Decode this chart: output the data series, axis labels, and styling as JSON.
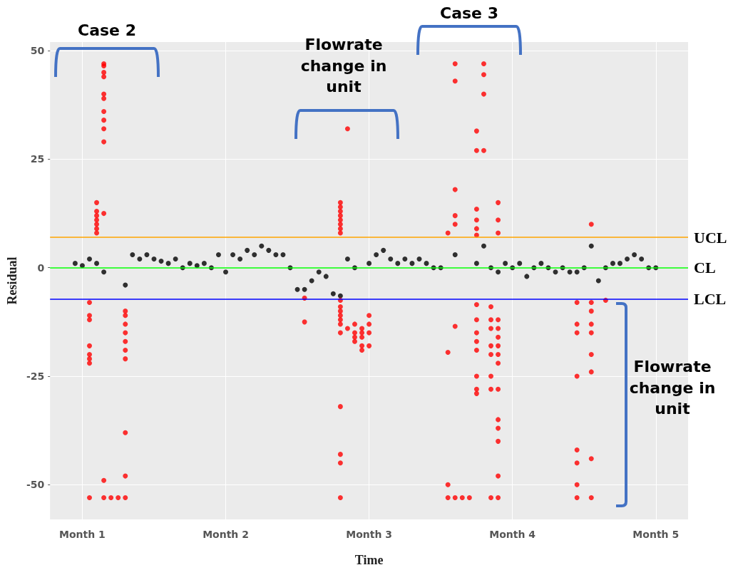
{
  "chart_data": {
    "type": "scatter",
    "xlabel": "Time",
    "ylabel": "Residual",
    "categories": [
      null,
      null,
      null,
      null,
      "Month 1",
      null,
      null,
      null,
      null,
      null,
      null,
      null,
      null,
      null,
      null,
      null,
      null,
      null,
      null,
      null,
      null,
      null,
      null,
      null,
      "Month 2",
      null,
      null,
      null,
      null,
      null,
      null,
      null,
      null,
      null,
      null,
      null,
      null,
      null,
      null,
      null,
      null,
      null,
      null,
      null,
      "Month 3",
      null,
      null,
      null,
      null,
      null,
      null,
      null,
      null,
      null,
      null,
      null,
      null,
      null,
      null,
      null,
      null,
      null,
      null,
      null,
      "Month 4",
      null,
      null,
      null,
      null,
      null,
      null,
      null,
      null,
      null,
      null,
      null,
      null,
      null,
      null,
      null,
      null,
      null,
      null,
      null,
      "Month 5",
      null,
      null,
      null,
      null
    ],
    "ylim": [
      -58,
      52
    ],
    "yticks": [
      -50,
      -25,
      0,
      25,
      50
    ],
    "grid": true,
    "marker": "circle",
    "series": [
      {
        "color": "#000000",
        "values": [
          null,
          null,
          null,
          1,
          0.5,
          2,
          1,
          -1,
          null,
          null,
          -4,
          3,
          2,
          3,
          2,
          1.5,
          1,
          2,
          0,
          1,
          0.5,
          1,
          0,
          3,
          -1,
          3,
          2,
          4,
          3,
          5,
          4,
          3,
          3,
          0,
          -5,
          -5,
          -3,
          -1,
          -2,
          -6,
          -6.5,
          2,
          0,
          null,
          1,
          3,
          4,
          2,
          1,
          2,
          1,
          2,
          1,
          0,
          0,
          null,
          3,
          null,
          null,
          1,
          5,
          0,
          -1,
          1,
          0,
          1,
          -2,
          0,
          1,
          0,
          -1,
          0,
          -1,
          -1,
          0,
          5,
          -3,
          0,
          1,
          1,
          2,
          3,
          2,
          0,
          0,
          null,
          null,
          null,
          null
        ]
      },
      {
        "color": "#ff0000",
        "values": [
          null,
          null,
          null,
          null,
          null,
          -53,
          15,
          47,
          -53,
          -53,
          -53,
          null,
          null,
          null,
          null,
          null,
          null,
          null,
          null,
          null,
          null,
          null,
          null,
          null,
          null,
          null,
          null,
          null,
          null,
          null,
          null,
          null,
          null,
          null,
          null,
          -7,
          null,
          null,
          null,
          null,
          15,
          32,
          -16,
          -19,
          -18,
          null,
          null,
          null,
          null,
          null,
          null,
          null,
          null,
          null,
          null,
          8,
          47,
          -53,
          -53,
          31.5,
          47,
          -9,
          15,
          null,
          null,
          null,
          null,
          null,
          null,
          null,
          null,
          null,
          null,
          -8,
          null,
          10,
          null,
          -7.5,
          null,
          null,
          null,
          null,
          null,
          null,
          null,
          null,
          null,
          null,
          null
        ]
      },
      {
        "color": "#ff0000",
        "values": [
          null,
          null,
          null,
          null,
          null,
          -22,
          13,
          46.5,
          null,
          null,
          -48,
          null,
          null,
          null,
          null,
          null,
          null,
          null,
          null,
          null,
          null,
          null,
          null,
          null,
          null,
          null,
          null,
          null,
          null,
          null,
          null,
          null,
          null,
          null,
          null,
          -12.5,
          null,
          null,
          null,
          null,
          14,
          -14,
          -13,
          -15,
          -13,
          null,
          null,
          null,
          null,
          null,
          null,
          null,
          null,
          null,
          null,
          -19.5,
          43,
          null,
          null,
          27,
          44.5,
          -12,
          11,
          null,
          null,
          null,
          null,
          null,
          null,
          null,
          null,
          null,
          null,
          -13,
          null,
          -8,
          null,
          null,
          null,
          null,
          null,
          null,
          null,
          null,
          null,
          null,
          null,
          null,
          null
        ]
      },
      {
        "color": "#ff0000",
        "values": [
          null,
          null,
          null,
          null,
          null,
          -21,
          12,
          45,
          null,
          null,
          -38,
          null,
          null,
          null,
          null,
          null,
          null,
          null,
          null,
          null,
          null,
          null,
          null,
          null,
          null,
          null,
          null,
          null,
          null,
          null,
          null,
          null,
          null,
          null,
          null,
          null,
          null,
          null,
          null,
          null,
          13,
          null,
          -17,
          -18,
          -15,
          null,
          null,
          null,
          null,
          null,
          null,
          null,
          null,
          null,
          null,
          -50,
          18,
          null,
          null,
          13.5,
          40,
          -14,
          8,
          null,
          null,
          null,
          null,
          null,
          null,
          null,
          null,
          null,
          null,
          -15,
          null,
          -10,
          null,
          null,
          null,
          null,
          null,
          null,
          null,
          null,
          null,
          null,
          null,
          null,
          null
        ]
      },
      {
        "color": "#ff0000",
        "values": [
          null,
          null,
          null,
          null,
          null,
          -20,
          11,
          44,
          null,
          null,
          -10,
          null,
          null,
          null,
          null,
          null,
          null,
          null,
          null,
          null,
          null,
          null,
          null,
          null,
          null,
          null,
          null,
          null,
          null,
          null,
          null,
          null,
          null,
          null,
          null,
          null,
          null,
          null,
          null,
          null,
          12,
          null,
          -15,
          -14,
          -11,
          null,
          null,
          null,
          null,
          null,
          null,
          null,
          null,
          null,
          null,
          -53,
          12,
          null,
          null,
          11,
          27,
          -18,
          -12,
          null,
          null,
          null,
          null,
          null,
          null,
          null,
          null,
          null,
          null,
          -25,
          null,
          -13,
          null,
          null,
          null,
          null,
          null,
          null,
          null,
          null,
          null,
          null,
          null,
          null,
          null
        ]
      },
      {
        "color": "#ff0000",
        "values": [
          null,
          null,
          null,
          null,
          null,
          -18,
          10,
          40,
          null,
          null,
          -11,
          null,
          null,
          null,
          null,
          null,
          null,
          null,
          null,
          null,
          null,
          null,
          null,
          null,
          null,
          null,
          null,
          null,
          null,
          null,
          null,
          null,
          null,
          null,
          null,
          null,
          null,
          null,
          null,
          null,
          11,
          null,
          null,
          -16,
          null,
          null,
          null,
          null,
          null,
          null,
          null,
          null,
          null,
          null,
          null,
          null,
          10,
          null,
          null,
          9,
          null,
          -20,
          -14,
          null,
          null,
          null,
          null,
          null,
          null,
          null,
          null,
          null,
          null,
          -42,
          null,
          -15,
          null,
          null,
          null,
          null,
          null,
          null,
          null,
          null,
          null,
          null,
          null,
          null,
          null
        ]
      },
      {
        "color": "#ff0000",
        "values": [
          null,
          null,
          null,
          null,
          null,
          -12,
          9,
          39,
          null,
          null,
          -13,
          null,
          null,
          null,
          null,
          null,
          null,
          null,
          null,
          null,
          null,
          null,
          null,
          null,
          null,
          null,
          null,
          null,
          null,
          null,
          null,
          null,
          null,
          null,
          null,
          null,
          null,
          null,
          null,
          null,
          10,
          null,
          null,
          null,
          null,
          null,
          null,
          null,
          null,
          null,
          null,
          null,
          null,
          null,
          null,
          null,
          -13.5,
          null,
          null,
          7.5,
          null,
          -25,
          -16,
          null,
          null,
          null,
          null,
          null,
          null,
          null,
          null,
          null,
          null,
          -45,
          null,
          -20,
          null,
          null,
          null,
          null,
          null,
          null,
          null,
          null,
          null,
          null,
          null,
          null,
          null
        ]
      },
      {
        "color": "#ff0000",
        "values": [
          null,
          null,
          null,
          null,
          null,
          -11,
          8,
          36,
          null,
          null,
          -15,
          null,
          null,
          null,
          null,
          null,
          null,
          null,
          null,
          null,
          null,
          null,
          null,
          null,
          null,
          null,
          null,
          null,
          null,
          null,
          null,
          null,
          null,
          null,
          null,
          null,
          null,
          null,
          null,
          null,
          9,
          null,
          null,
          null,
          null,
          null,
          null,
          null,
          null,
          null,
          null,
          null,
          null,
          null,
          null,
          null,
          -53,
          null,
          null,
          -8.5,
          null,
          -28,
          -18,
          null,
          null,
          null,
          null,
          null,
          null,
          null,
          null,
          null,
          null,
          -50,
          null,
          -24,
          null,
          null,
          null,
          null,
          null,
          null,
          null,
          null,
          null,
          null,
          null,
          null,
          null
        ]
      },
      {
        "color": "#ff0000",
        "values": [
          null,
          null,
          null,
          null,
          null,
          -8,
          null,
          34,
          null,
          null,
          -17,
          null,
          null,
          null,
          null,
          null,
          null,
          null,
          null,
          null,
          null,
          null,
          null,
          null,
          null,
          null,
          null,
          null,
          null,
          null,
          null,
          null,
          null,
          null,
          null,
          null,
          null,
          null,
          null,
          null,
          8,
          null,
          null,
          null,
          null,
          null,
          null,
          null,
          null,
          null,
          null,
          null,
          null,
          null,
          null,
          null,
          null,
          null,
          null,
          -12,
          null,
          -53,
          -20,
          null,
          null,
          null,
          null,
          null,
          null,
          null,
          null,
          null,
          null,
          -53,
          null,
          -44,
          null,
          null,
          null,
          null,
          null,
          null,
          null,
          null,
          null,
          null,
          null,
          null,
          null
        ]
      },
      {
        "color": "#ff0000",
        "values": [
          null,
          null,
          null,
          null,
          null,
          null,
          null,
          32,
          null,
          null,
          -19,
          null,
          null,
          null,
          null,
          null,
          null,
          null,
          null,
          null,
          null,
          null,
          null,
          null,
          null,
          null,
          null,
          null,
          null,
          null,
          null,
          null,
          null,
          null,
          null,
          null,
          null,
          null,
          null,
          null,
          -7.5,
          null,
          null,
          null,
          null,
          null,
          null,
          null,
          null,
          null,
          null,
          null,
          null,
          null,
          null,
          null,
          null,
          null,
          null,
          -15,
          null,
          null,
          -22,
          null,
          null,
          null,
          null,
          null,
          null,
          null,
          null,
          null,
          null,
          null,
          null,
          -53,
          null,
          null,
          null,
          null,
          null,
          null,
          null,
          null,
          null,
          null,
          null,
          null,
          null
        ]
      },
      {
        "color": "#ff0000",
        "values": [
          null,
          null,
          null,
          null,
          null,
          null,
          null,
          29,
          null,
          null,
          -21,
          null,
          null,
          null,
          null,
          null,
          null,
          null,
          null,
          null,
          null,
          null,
          null,
          null,
          null,
          null,
          null,
          null,
          null,
          null,
          null,
          null,
          null,
          null,
          null,
          null,
          null,
          null,
          null,
          null,
          null,
          null,
          null,
          null,
          null,
          null,
          null,
          null,
          null,
          null,
          null,
          null,
          null,
          null,
          null,
          null,
          null,
          null,
          null,
          -17,
          null,
          null,
          -28,
          null,
          null,
          null,
          null,
          null,
          null,
          null,
          null,
          null,
          null,
          null,
          null,
          null,
          null,
          null,
          null,
          null,
          null,
          null,
          null,
          null,
          null,
          null,
          null,
          null,
          null
        ]
      },
      {
        "color": "#ff0000",
        "values": [
          null,
          null,
          null,
          null,
          null,
          null,
          null,
          12.5,
          null,
          null,
          null,
          null,
          null,
          null,
          null,
          null,
          null,
          null,
          null,
          null,
          null,
          null,
          null,
          null,
          null,
          null,
          null,
          null,
          null,
          null,
          null,
          null,
          null,
          null,
          null,
          null,
          null,
          null,
          null,
          null,
          -9,
          null,
          null,
          null,
          null,
          null,
          null,
          null,
          null,
          null,
          null,
          null,
          null,
          null,
          null,
          null,
          null,
          null,
          null,
          -19,
          null,
          null,
          -35,
          null,
          null,
          null,
          null,
          null,
          null,
          null,
          null,
          null,
          null,
          null,
          null,
          null,
          null,
          null,
          null,
          null,
          null,
          null,
          null,
          null,
          null,
          null,
          null,
          null,
          null
        ]
      },
      {
        "color": "#ff0000",
        "values": [
          null,
          null,
          null,
          null,
          null,
          null,
          null,
          -49,
          null,
          null,
          null,
          null,
          null,
          null,
          null,
          null,
          null,
          null,
          null,
          null,
          null,
          null,
          null,
          null,
          null,
          null,
          null,
          null,
          null,
          null,
          null,
          null,
          null,
          null,
          null,
          null,
          null,
          null,
          null,
          null,
          -10,
          null,
          null,
          null,
          null,
          null,
          null,
          null,
          null,
          null,
          null,
          null,
          null,
          null,
          null,
          null,
          null,
          null,
          null,
          -25,
          null,
          null,
          -37,
          null,
          null,
          null,
          null,
          null,
          null,
          null,
          null,
          null,
          null,
          null,
          null,
          null,
          null,
          null,
          null,
          null,
          null,
          null,
          null,
          null,
          null,
          null,
          null,
          null,
          null
        ]
      },
      {
        "color": "#ff0000",
        "values": [
          null,
          null,
          null,
          null,
          null,
          null,
          null,
          -53,
          null,
          null,
          null,
          null,
          null,
          null,
          null,
          null,
          null,
          null,
          null,
          null,
          null,
          null,
          null,
          null,
          null,
          null,
          null,
          null,
          null,
          null,
          null,
          null,
          null,
          null,
          null,
          null,
          null,
          null,
          null,
          null,
          -11,
          null,
          null,
          null,
          null,
          null,
          null,
          null,
          null,
          null,
          null,
          null,
          null,
          null,
          null,
          null,
          null,
          null,
          null,
          -28,
          null,
          null,
          -40,
          null,
          null,
          null,
          null,
          null,
          null,
          null,
          null,
          null,
          null,
          null,
          null,
          null,
          null,
          null,
          null,
          null,
          null,
          null,
          null,
          null,
          null,
          null,
          null,
          null,
          null
        ]
      },
      {
        "color": "#ff0000",
        "values": [
          null,
          null,
          null,
          null,
          null,
          null,
          null,
          null,
          null,
          null,
          null,
          null,
          null,
          null,
          null,
          null,
          null,
          null,
          null,
          null,
          null,
          null,
          null,
          null,
          null,
          null,
          null,
          null,
          null,
          null,
          null,
          null,
          null,
          null,
          null,
          null,
          null,
          null,
          null,
          null,
          -12,
          null,
          null,
          null,
          null,
          null,
          null,
          null,
          null,
          null,
          null,
          null,
          null,
          null,
          null,
          null,
          null,
          null,
          null,
          -29,
          null,
          null,
          -48,
          null,
          null,
          null,
          null,
          null,
          null,
          null,
          null,
          null,
          null,
          null,
          null,
          null,
          null,
          null,
          null,
          null,
          null,
          null,
          null,
          null,
          null,
          null,
          null,
          null,
          null
        ]
      },
      {
        "color": "#ff0000",
        "values": [
          null,
          null,
          null,
          null,
          null,
          null,
          null,
          null,
          null,
          null,
          null,
          null,
          null,
          null,
          null,
          null,
          null,
          null,
          null,
          null,
          null,
          null,
          null,
          null,
          null,
          null,
          null,
          null,
          null,
          null,
          null,
          null,
          null,
          null,
          null,
          null,
          null,
          null,
          null,
          null,
          -13,
          null,
          null,
          null,
          null,
          null,
          null,
          null,
          null,
          null,
          null,
          null,
          null,
          null,
          null,
          null,
          null,
          null,
          null,
          null,
          null,
          null,
          -53,
          null,
          null,
          null,
          null,
          null,
          null,
          null,
          null,
          null,
          null,
          null,
          null,
          null,
          null,
          null,
          null,
          null,
          null,
          null,
          null,
          null,
          null,
          null,
          null,
          null,
          null
        ]
      },
      {
        "color": "#ff0000",
        "values": [
          null,
          null,
          null,
          null,
          null,
          null,
          null,
          null,
          null,
          null,
          null,
          null,
          null,
          null,
          null,
          null,
          null,
          null,
          null,
          null,
          null,
          null,
          null,
          null,
          null,
          null,
          null,
          null,
          null,
          null,
          null,
          null,
          null,
          null,
          null,
          null,
          null,
          null,
          null,
          null,
          -15,
          null,
          null,
          null,
          null,
          null,
          null,
          null,
          null,
          null,
          null,
          null,
          null,
          null,
          null,
          null,
          null,
          null,
          null,
          null,
          null,
          null,
          null,
          null,
          null,
          null,
          null,
          null,
          null,
          null,
          null,
          null,
          null,
          null,
          null,
          null,
          null,
          null,
          null,
          null,
          null,
          null,
          null,
          null,
          null,
          null,
          null,
          null,
          null
        ]
      },
      {
        "color": "#ff0000",
        "values": [
          null,
          null,
          null,
          null,
          null,
          null,
          null,
          null,
          null,
          null,
          null,
          null,
          null,
          null,
          null,
          null,
          null,
          null,
          null,
          null,
          null,
          null,
          null,
          null,
          null,
          null,
          null,
          null,
          null,
          null,
          null,
          null,
          null,
          null,
          null,
          null,
          null,
          null,
          null,
          null,
          -32,
          null,
          null,
          null,
          null,
          null,
          null,
          null,
          null,
          null,
          null,
          null,
          null,
          null,
          null,
          null,
          null,
          null,
          null,
          null,
          null,
          null,
          null,
          null,
          null,
          null,
          null,
          null,
          null,
          null,
          null,
          null,
          null,
          null,
          null,
          null,
          null,
          null,
          null,
          null,
          null,
          null,
          null,
          null,
          null,
          null,
          null,
          null,
          null
        ]
      },
      {
        "color": "#ff0000",
        "values": [
          null,
          null,
          null,
          null,
          null,
          null,
          null,
          null,
          null,
          null,
          null,
          null,
          null,
          null,
          null,
          null,
          null,
          null,
          null,
          null,
          null,
          null,
          null,
          null,
          null,
          null,
          null,
          null,
          null,
          null,
          null,
          null,
          null,
          null,
          null,
          null,
          null,
          null,
          null,
          null,
          -43,
          null,
          null,
          null,
          null,
          null,
          null,
          null,
          null,
          null,
          null,
          null,
          null,
          null,
          null,
          null,
          null,
          null,
          null,
          null,
          null,
          null,
          null,
          null,
          null,
          null,
          null,
          null,
          null,
          null,
          null,
          null,
          null,
          null,
          null,
          null,
          null,
          null,
          null,
          null,
          null,
          null,
          null,
          null,
          null,
          null,
          null,
          null,
          null
        ]
      },
      {
        "color": "#ff0000",
        "values": [
          null,
          null,
          null,
          null,
          null,
          null,
          null,
          null,
          null,
          null,
          null,
          null,
          null,
          null,
          null,
          null,
          null,
          null,
          null,
          null,
          null,
          null,
          null,
          null,
          null,
          null,
          null,
          null,
          null,
          null,
          null,
          null,
          null,
          null,
          null,
          null,
          null,
          null,
          null,
          null,
          -45,
          null,
          null,
          null,
          null,
          null,
          null,
          null,
          null,
          null,
          null,
          null,
          null,
          null,
          null,
          null,
          null,
          null,
          null,
          null,
          null,
          null,
          null,
          null,
          null,
          null,
          null,
          null,
          null,
          null,
          null,
          null,
          null,
          null,
          null,
          null,
          null,
          null,
          null,
          null,
          null,
          null,
          null,
          null,
          null,
          null,
          null,
          null,
          null
        ]
      },
      {
        "color": "#ff0000",
        "values": [
          null,
          null,
          null,
          null,
          null,
          null,
          null,
          null,
          null,
          null,
          null,
          null,
          null,
          null,
          null,
          null,
          null,
          null,
          null,
          null,
          null,
          null,
          null,
          null,
          null,
          null,
          null,
          null,
          null,
          null,
          null,
          null,
          null,
          null,
          null,
          null,
          null,
          null,
          null,
          null,
          -53,
          null,
          null,
          null,
          null,
          null,
          null,
          null,
          null,
          null,
          null,
          null,
          null,
          null,
          null,
          null,
          null,
          null,
          null,
          null,
          null,
          null,
          null,
          null,
          null,
          null,
          null,
          null,
          null,
          null,
          null,
          null,
          null,
          null,
          null,
          null,
          null,
          null,
          null,
          null,
          null,
          null,
          null,
          null,
          null,
          null,
          null,
          null,
          null
        ]
      }
    ],
    "ref_lines": [
      {
        "axis": "y",
        "value": 7,
        "label": "UCL",
        "color": "#ffa500"
      },
      {
        "axis": "y",
        "value": 0,
        "label": "CL",
        "color": "#00ff00"
      },
      {
        "axis": "y",
        "value": -7.2,
        "label": "LCL",
        "color": "#0000ff"
      }
    ],
    "annotations": [
      "Case 2",
      "Flowrate change in unit",
      "Case 3",
      "Flowrate change in unit"
    ]
  }
}
